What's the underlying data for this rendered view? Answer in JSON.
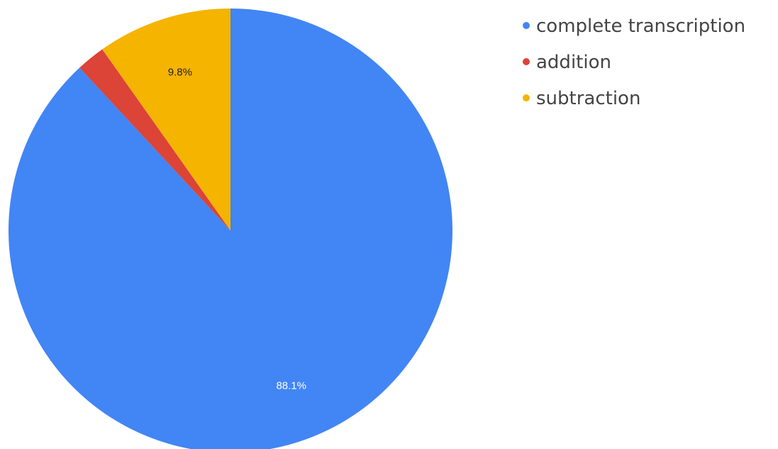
{
  "chart_data": {
    "type": "pie",
    "title": "",
    "slices": [
      {
        "label": "complete transcription",
        "value": 88.1,
        "display": "88.1%",
        "color": "#4285f4"
      },
      {
        "label": "addition",
        "value": 2.1,
        "display": "",
        "color": "#db4437"
      },
      {
        "label": "subtraction",
        "value": 9.8,
        "display": "9.8%",
        "color": "#f4b400"
      }
    ],
    "start_angle_deg": 0,
    "direction": "clockwise",
    "legend_position": "top-right",
    "label_colors": {
      "on_blue": "#ffffff",
      "on_yellow": "#222222"
    }
  }
}
